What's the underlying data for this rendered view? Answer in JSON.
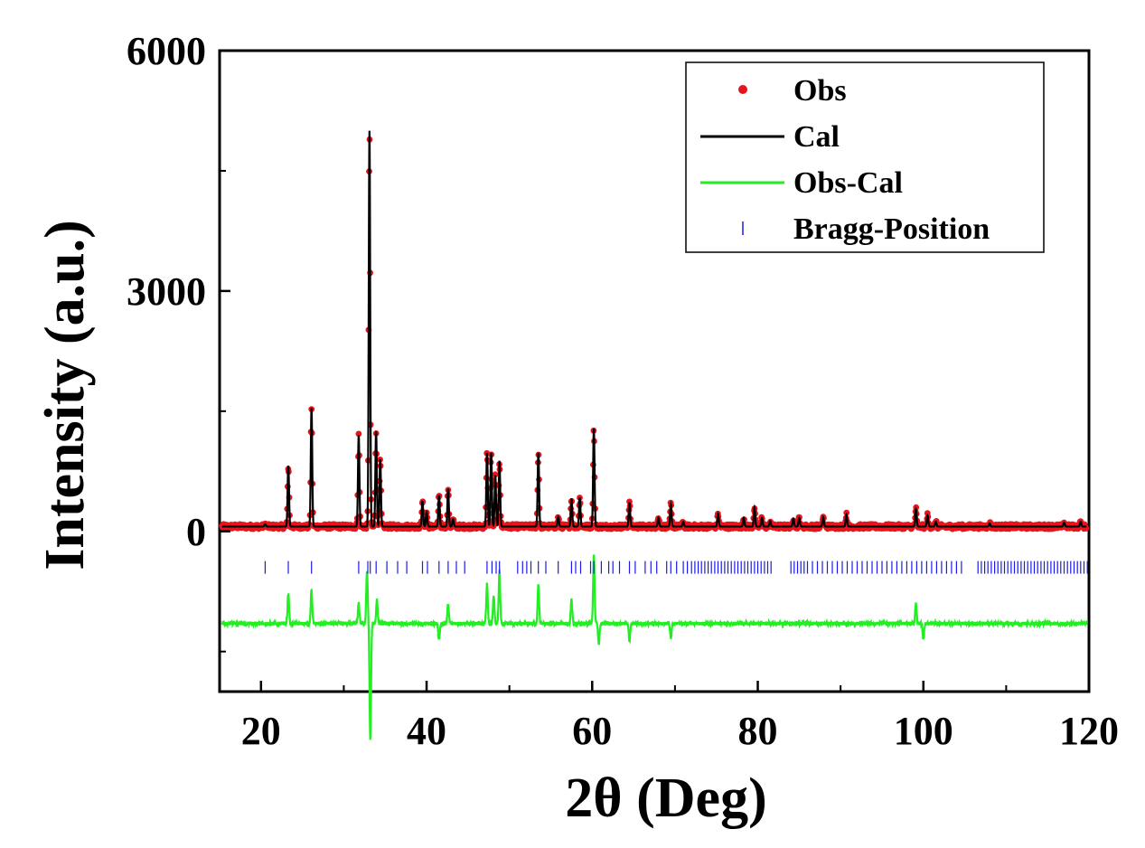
{
  "chart_data": {
    "type": "line",
    "xlabel": "2θ (Deg)",
    "ylabel": "Intensity (a.u.)",
    "xlim": [
      15,
      120
    ],
    "ylim": [
      -2000,
      6000
    ],
    "xticks": [
      20,
      40,
      60,
      80,
      100,
      120
    ],
    "yticks": [
      0,
      3000,
      6000
    ],
    "xminor_ticks": [
      30,
      50,
      70,
      90,
      110
    ],
    "yminor_ticks": [
      -1500,
      1500,
      4500
    ],
    "legend_position": "top-right",
    "background_level": 60,
    "difference_offset": -1150,
    "peaks": [
      {
        "x": 20.5,
        "y": 90
      },
      {
        "x": 23.3,
        "y": 820
      },
      {
        "x": 26.1,
        "y": 1540
      },
      {
        "x": 31.8,
        "y": 1200
      },
      {
        "x": 33.1,
        "y": 5000
      },
      {
        "x": 33.9,
        "y": 1250
      },
      {
        "x": 34.4,
        "y": 900
      },
      {
        "x": 39.5,
        "y": 380
      },
      {
        "x": 40.0,
        "y": 240
      },
      {
        "x": 41.5,
        "y": 450
      },
      {
        "x": 42.6,
        "y": 530
      },
      {
        "x": 43.2,
        "y": 150
      },
      {
        "x": 47.3,
        "y": 980
      },
      {
        "x": 47.8,
        "y": 980
      },
      {
        "x": 48.3,
        "y": 700
      },
      {
        "x": 48.8,
        "y": 880
      },
      {
        "x": 53.5,
        "y": 980
      },
      {
        "x": 55.9,
        "y": 180
      },
      {
        "x": 57.5,
        "y": 410
      },
      {
        "x": 58.5,
        "y": 420
      },
      {
        "x": 60.2,
        "y": 1280
      },
      {
        "x": 64.5,
        "y": 360
      },
      {
        "x": 68.0,
        "y": 170
      },
      {
        "x": 69.5,
        "y": 340
      },
      {
        "x": 71.0,
        "y": 120
      },
      {
        "x": 75.2,
        "y": 220
      },
      {
        "x": 78.3,
        "y": 170
      },
      {
        "x": 79.6,
        "y": 300
      },
      {
        "x": 80.5,
        "y": 170
      },
      {
        "x": 81.5,
        "y": 130
      },
      {
        "x": 84.3,
        "y": 160
      },
      {
        "x": 85.0,
        "y": 170
      },
      {
        "x": 87.9,
        "y": 180
      },
      {
        "x": 90.7,
        "y": 210
      },
      {
        "x": 99.1,
        "y": 280
      },
      {
        "x": 100.5,
        "y": 200
      },
      {
        "x": 101.5,
        "y": 120
      },
      {
        "x": 108.0,
        "y": 100
      },
      {
        "x": 117.0,
        "y": 110
      },
      {
        "x": 119.0,
        "y": 120
      }
    ],
    "difference_features": [
      {
        "x": 23.3,
        "y": 380
      },
      {
        "x": 26.1,
        "y": 420
      },
      {
        "x": 31.8,
        "y": 250
      },
      {
        "x": 32.8,
        "y": 650
      },
      {
        "x": 33.2,
        "y": -1450
      },
      {
        "x": 34.0,
        "y": 300
      },
      {
        "x": 41.5,
        "y": -200
      },
      {
        "x": 42.6,
        "y": 250
      },
      {
        "x": 47.3,
        "y": 500
      },
      {
        "x": 48.1,
        "y": 350
      },
      {
        "x": 48.8,
        "y": 650
      },
      {
        "x": 53.5,
        "y": 480
      },
      {
        "x": 57.5,
        "y": 300
      },
      {
        "x": 60.2,
        "y": 850
      },
      {
        "x": 60.8,
        "y": -250
      },
      {
        "x": 64.5,
        "y": -220
      },
      {
        "x": 69.5,
        "y": -180
      },
      {
        "x": 99.1,
        "y": 250
      },
      {
        "x": 100.0,
        "y": -180
      }
    ],
    "bragg_positions": [
      20.5,
      23.3,
      26.1,
      31.8,
      32.9,
      33.2,
      33.9,
      35.2,
      36.5,
      37.6,
      39.5,
      40.1,
      41.5,
      42.6,
      43.6,
      44.6,
      47.3,
      47.9,
      48.4,
      48.8,
      51.0,
      51.6,
      52.1,
      52.6,
      53.5,
      54.4,
      55.9,
      57.5,
      58.0,
      58.6,
      59.8,
      60.2,
      61.1,
      62.0,
      62.5,
      63.3,
      64.5,
      65.2,
      66.4,
      67.1,
      67.8,
      69.0,
      69.5,
      70.2,
      71.0,
      71.5,
      72.0,
      72.4,
      72.8,
      73.2,
      73.6,
      74.0,
      74.4,
      74.8,
      75.2,
      75.6,
      76.0,
      76.4,
      76.8,
      77.2,
      77.6,
      78.0,
      78.4,
      78.8,
      79.2,
      79.6,
      80.0,
      80.4,
      80.8,
      81.2,
      81.6,
      84.0,
      84.4,
      84.8,
      85.2,
      85.6,
      86.0,
      86.6,
      87.2,
      87.8,
      88.4,
      89.0,
      89.6,
      90.2,
      90.8,
      91.4,
      92.0,
      92.6,
      93.2,
      93.8,
      94.4,
      95.0,
      95.6,
      96.2,
      96.8,
      97.4,
      98.0,
      98.6,
      99.2,
      99.8,
      100.4,
      101.0,
      101.6,
      102.2,
      102.8,
      103.4,
      104.0,
      104.6,
      106.6,
      107.0,
      107.4,
      107.8,
      108.2,
      108.6,
      109.0,
      109.4,
      109.8,
      110.2,
      110.6,
      111.0,
      111.4,
      111.8,
      112.2,
      112.6,
      113.0,
      113.4,
      113.8,
      114.2,
      114.6,
      115.0,
      115.4,
      115.8,
      116.2,
      116.6,
      117.0,
      117.4,
      117.8,
      118.2,
      118.6,
      119.0,
      119.4,
      119.8
    ],
    "bragg_y": -450,
    "series": [
      {
        "name": "Obs",
        "style": "markers",
        "color": "#e8141c"
      },
      {
        "name": "Cal",
        "style": "line",
        "color": "#000000"
      },
      {
        "name": "Obs-Cal",
        "style": "line",
        "color": "#22ee22"
      },
      {
        "name": "Bragg-Position",
        "style": "ticks",
        "color": "#1a1aee"
      }
    ]
  }
}
